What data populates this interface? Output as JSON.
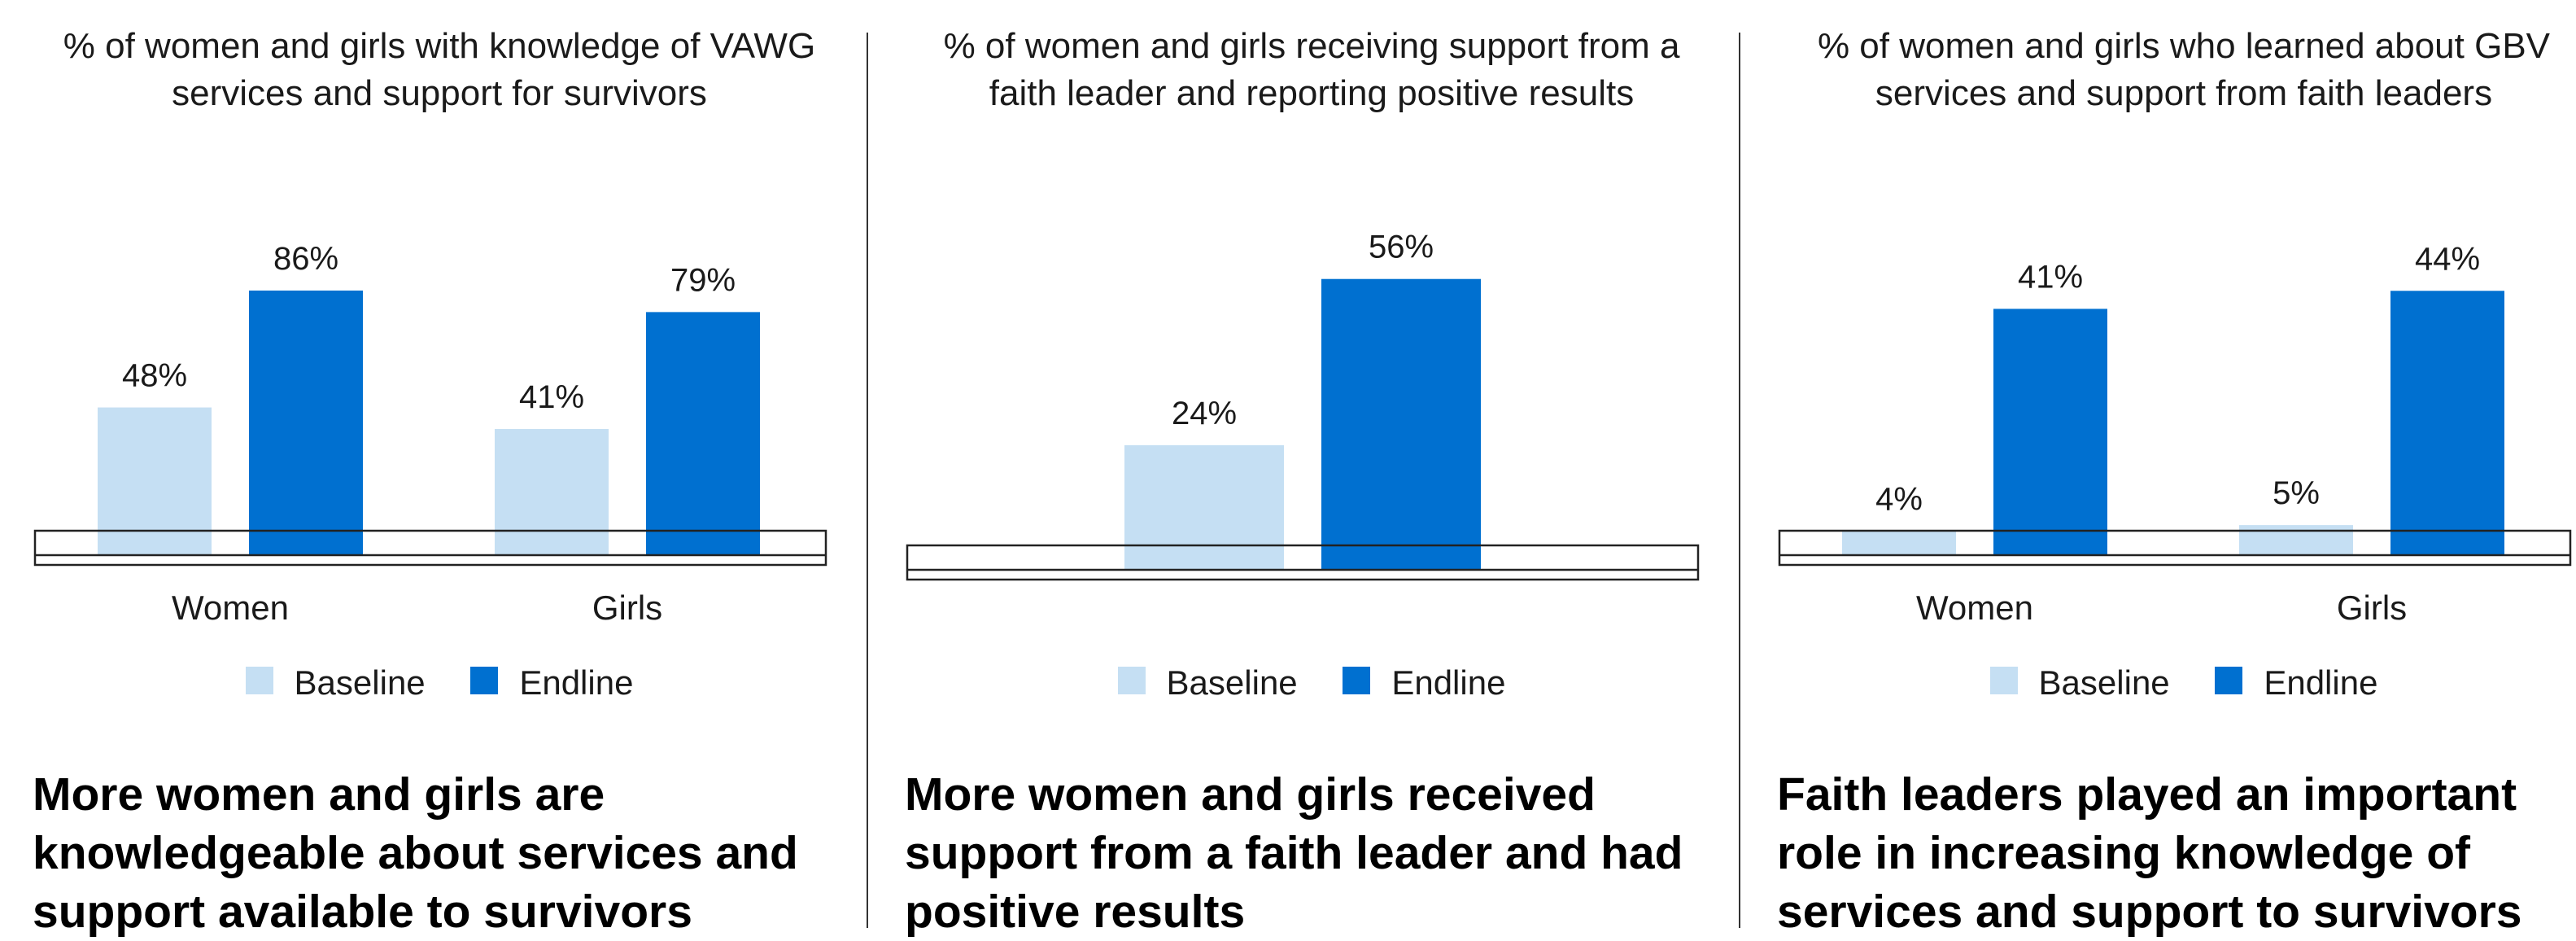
{
  "colors": {
    "baseline": "#c5dff3",
    "endline": "#0070d0"
  },
  "legend": {
    "baseline": "Baseline",
    "endline": "Endline"
  },
  "panels": [
    {
      "title": "% of women and girls with knowledge of VAWG services and support for survivors",
      "headline": "More women and girls are knowledgeable about services and support available to survivors",
      "chart_data": {
        "type": "bar",
        "title": "% of women and girls with knowledge of VAWG services and support for survivors",
        "categories": [
          "Women",
          "Girls"
        ],
        "series": [
          {
            "name": "Baseline",
            "values": [
              48,
              41
            ],
            "labels": [
              "48%",
              "41%"
            ]
          },
          {
            "name": "Endline",
            "values": [
              86,
              79
            ],
            "labels": [
              "86%",
              "79%"
            ]
          }
        ],
        "ylim": [
          0,
          100
        ],
        "grid": false,
        "legend": "bottom"
      }
    },
    {
      "title": "% of women and girls receiving support from a faith leader and reporting positive results",
      "headline": "More women and girls received support from a faith leader and had positive results",
      "chart_data": {
        "type": "bar",
        "title": "% of women and girls receiving support from a faith leader and reporting positive results",
        "categories": [
          ""
        ],
        "series": [
          {
            "name": "Baseline",
            "values": [
              24
            ],
            "labels": [
              "24%"
            ]
          },
          {
            "name": "Endline",
            "values": [
              56
            ],
            "labels": [
              "56%"
            ]
          }
        ],
        "ylim": [
          0,
          100
        ],
        "grid": false,
        "legend": "bottom"
      }
    },
    {
      "title": "% of women and girls who learned about GBV services and support from faith leaders",
      "headline": "Faith leaders played an important role in increasing knowledge of services and support to survivors",
      "chart_data": {
        "type": "bar",
        "title": "% of women and girls who learned about GBV services and support from faith leaders",
        "categories": [
          "Women",
          "Girls"
        ],
        "series": [
          {
            "name": "Baseline",
            "values": [
              4,
              5
            ],
            "labels": [
              "4%",
              "5%"
            ]
          },
          {
            "name": "Endline",
            "values": [
              41,
              44
            ],
            "labels": [
              "41%",
              "44%"
            ]
          }
        ],
        "ylim": [
          0,
          100
        ],
        "grid": false,
        "legend": "bottom"
      }
    }
  ]
}
